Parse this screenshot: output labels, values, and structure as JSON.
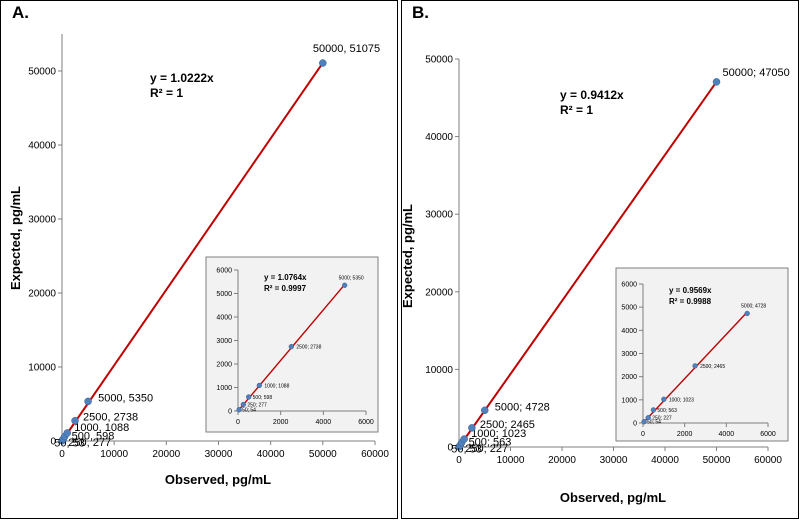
{
  "chart_data": [
    {
      "panel": "A.",
      "type": "scatter",
      "xlabel": "Observed, pg/mL",
      "ylabel": "Expected, pg/mL",
      "xlim": [
        0,
        60000
      ],
      "ylim": [
        0,
        55000
      ],
      "xticks": [
        "0",
        "10000",
        "20000",
        "30000",
        "40000",
        "50000",
        "60000"
      ],
      "yticks": [
        "0",
        "10000",
        "20000",
        "30000",
        "40000",
        "50000"
      ],
      "trendline": {
        "slope": 1.0222,
        "equation": "y = 1.0222x",
        "r2": "R² = 1"
      },
      "points": [
        {
          "x": 50,
          "y": 53,
          "label": "50, 53"
        },
        {
          "x": 250,
          "y": 277,
          "label": "250, 277"
        },
        {
          "x": 500,
          "y": 598,
          "label": "500, 598"
        },
        {
          "x": 1000,
          "y": 1088,
          "label": "1000, 1088"
        },
        {
          "x": 2500,
          "y": 2738,
          "label": "2500, 2738"
        },
        {
          "x": 5000,
          "y": 5350,
          "label": "5000, 5350"
        },
        {
          "x": 50000,
          "y": 51075,
          "label": "50000, 51075"
        }
      ],
      "inset": {
        "xlim": [
          0,
          6000
        ],
        "ylim": [
          0,
          6000
        ],
        "xticks": [
          "0",
          "2000",
          "4000",
          "6000"
        ],
        "yticks": [
          "0",
          "1000",
          "2000",
          "3000",
          "4000",
          "5000",
          "6000"
        ],
        "trendline": {
          "slope": 1.0764,
          "equation": "y = 1.0764x",
          "r2": "R² = 0.9997"
        },
        "points": [
          {
            "x": 50,
            "y": 54,
            "label": "50; 54"
          },
          {
            "x": 250,
            "y": 277,
            "label": "250; 277"
          },
          {
            "x": 500,
            "y": 598,
            "label": "500; 598"
          },
          {
            "x": 1000,
            "y": 1088,
            "label": "1000; 1088"
          },
          {
            "x": 2500,
            "y": 2738,
            "label": "2500; 2738"
          },
          {
            "x": 5000,
            "y": 5350,
            "label": "5000; 5350"
          }
        ]
      }
    },
    {
      "panel": "B.",
      "type": "scatter",
      "xlabel": "Observed, pg/mL",
      "ylabel": "Expected, pg/mL",
      "xlim": [
        0,
        60000
      ],
      "ylim": [
        0,
        50000
      ],
      "xticks": [
        "0",
        "10000",
        "20000",
        "30000",
        "40000",
        "50000",
        "60000"
      ],
      "yticks": [
        "0",
        "10000",
        "20000",
        "30000",
        "40000",
        "50000"
      ],
      "trendline": {
        "slope": 0.9412,
        "equation": "y = 0.9412x",
        "r2": "R² = 1"
      },
      "points": [
        {
          "x": 50,
          "y": 53,
          "label": "50; 53"
        },
        {
          "x": 250,
          "y": 227,
          "label": "250; 227"
        },
        {
          "x": 500,
          "y": 563,
          "label": "500; 563"
        },
        {
          "x": 1000,
          "y": 1023,
          "label": "1000; 1023"
        },
        {
          "x": 2500,
          "y": 2465,
          "label": "2500; 2465"
        },
        {
          "x": 5000,
          "y": 4728,
          "label": "5000; 4728"
        },
        {
          "x": 50000,
          "y": 47050,
          "label": "50000; 47050"
        }
      ],
      "inset": {
        "xlim": [
          0,
          6000
        ],
        "ylim": [
          0,
          6000
        ],
        "xticks": [
          "0",
          "2000",
          "4000",
          "6000"
        ],
        "yticks": [
          "0",
          "1000",
          "2000",
          "3000",
          "4000",
          "5000",
          "6000"
        ],
        "trendline": {
          "slope": 0.9569,
          "equation": "y = 0.9569x",
          "r2": "R² = 0.9988"
        },
        "points": [
          {
            "x": 50,
            "y": 54,
            "label": "50; 54"
          },
          {
            "x": 250,
            "y": 227,
            "label": "250; 227"
          },
          {
            "x": 500,
            "y": 563,
            "label": "500; 563"
          },
          {
            "x": 1000,
            "y": 1023,
            "label": "1000; 1023"
          },
          {
            "x": 2500,
            "y": 2465,
            "label": "2500; 2465"
          },
          {
            "x": 5000,
            "y": 4728,
            "label": "5000; 4728"
          }
        ]
      }
    }
  ],
  "style": {
    "line_color": "#c00000",
    "point_color": "#4f81bd",
    "inset_bg": "#f2f2f2"
  }
}
